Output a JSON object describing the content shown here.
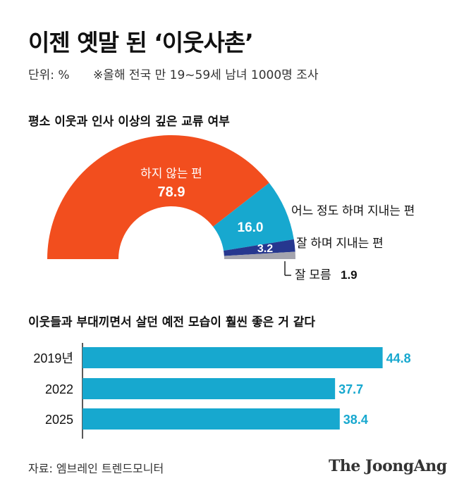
{
  "title": "이젠 옛말 된 ‘이웃사촌’",
  "unit": "단위: %",
  "note": "※올해 전국 만 19~59세 남녀 1000명 조사",
  "source": "자료: 엠브레인 트렌드모니터",
  "logo": "The JoongAng",
  "colors": {
    "orange": "#f24e1e",
    "cyan": "#17a8cf",
    "navy": "#26378f",
    "gray": "#a4a4ae",
    "bar": "#17a8cf"
  },
  "chart_data": [
    {
      "type": "pie",
      "title": "평소 이웃과 인사 이상의 깊은 교류 여부",
      "slices": [
        {
          "label": "하지 않는 편",
          "value": 78.9,
          "value_label": "78.9",
          "color": "#f24e1e"
        },
        {
          "label": "어느 정도 하며 지내는 편",
          "value": 16.0,
          "value_label": "16.0",
          "color": "#17a8cf"
        },
        {
          "label": "잘 하며 지내는 편",
          "value": 3.2,
          "value_label": "3.2",
          "color": "#26378f"
        },
        {
          "label": "잘 모름",
          "value": 1.9,
          "value_label": "1.9",
          "color": "#a4a4ae"
        }
      ]
    },
    {
      "type": "bar",
      "title": "이웃들과 부대끼면서 살던 예전 모습이 훨씬 좋은 거 같다",
      "categories": [
        "2019년",
        "2022",
        "2025"
      ],
      "values": [
        44.8,
        37.7,
        38.4
      ],
      "value_labels": [
        "44.8",
        "37.7",
        "38.4"
      ]
    }
  ]
}
